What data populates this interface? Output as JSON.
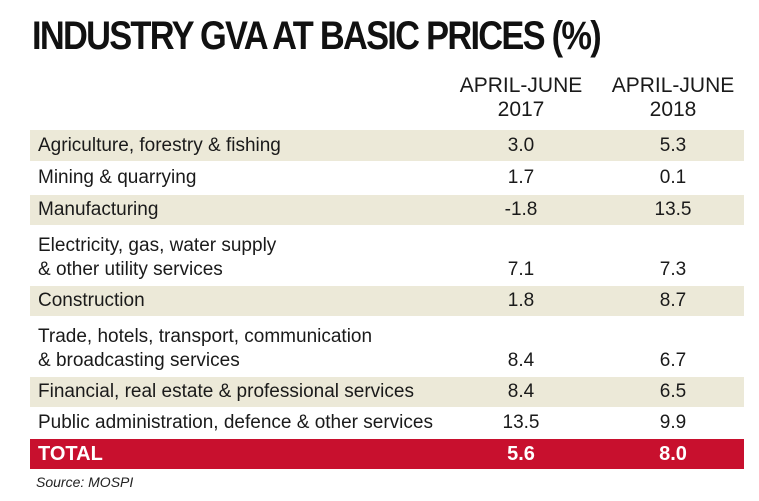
{
  "chart_data": {
    "type": "table",
    "title": "INDUSTRY GVA AT BASIC PRICES (%)",
    "columns": [
      {
        "line1": "APRIL-JUNE",
        "line2": "2017"
      },
      {
        "line1": "APRIL-JUNE",
        "line2": "2018"
      }
    ],
    "rows": [
      {
        "label": [
          "Agriculture, forestry & fishing"
        ],
        "values": [
          "3.0",
          "5.3"
        ]
      },
      {
        "label": [
          "Mining & quarrying"
        ],
        "values": [
          "1.7",
          "0.1"
        ]
      },
      {
        "label": [
          "Manufacturing"
        ],
        "values": [
          "-1.8",
          "13.5"
        ]
      },
      {
        "label": [
          "Electricity, gas, water supply",
          "& other utility services"
        ],
        "values": [
          "7.1",
          "7.3"
        ]
      },
      {
        "label": [
          "Construction"
        ],
        "values": [
          "1.8",
          "8.7"
        ]
      },
      {
        "label": [
          "Trade, hotels, transport, communication",
          "& broadcasting services"
        ],
        "values": [
          "8.4",
          "6.7"
        ]
      },
      {
        "label": [
          "Financial, real estate & professional services"
        ],
        "values": [
          "8.4",
          "6.5"
        ]
      },
      {
        "label": [
          "Public administration, defence & other services"
        ],
        "values": [
          "13.5",
          "9.9"
        ]
      }
    ],
    "total": {
      "label": "TOTAL",
      "values": [
        "5.6",
        "8.0"
      ]
    },
    "source": "Source: MOSPI"
  },
  "colors": {
    "row_shade": "#ece9d8",
    "total_bg": "#c8102e",
    "total_text": "#ffffff"
  }
}
